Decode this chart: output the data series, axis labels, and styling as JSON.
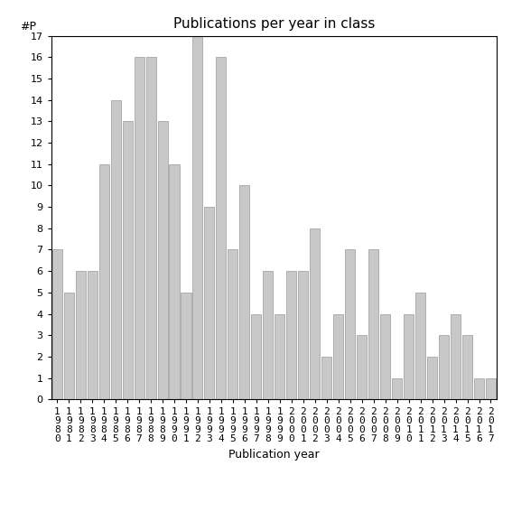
{
  "title": "Publications per year in class",
  "xlabel": "Publication year",
  "ylabel": "#P",
  "years": [
    1980,
    1981,
    1982,
    1983,
    1984,
    1985,
    1986,
    1987,
    1988,
    1989,
    1990,
    1991,
    1992,
    1993,
    1994,
    1995,
    1996,
    1997,
    1998,
    1999,
    2000,
    2001,
    2002,
    2003,
    2004,
    2005,
    2006,
    2007,
    2008,
    2009,
    2010,
    2011,
    2012,
    2013,
    2014,
    2015,
    2016,
    2017
  ],
  "values": [
    7,
    5,
    6,
    6,
    11,
    14,
    13,
    16,
    16,
    13,
    11,
    5,
    17,
    9,
    16,
    7,
    10,
    4,
    6,
    4,
    6,
    6,
    8,
    2,
    4,
    7,
    3,
    7,
    4,
    1,
    4,
    5,
    2,
    3,
    4,
    3,
    1,
    1
  ],
  "bar_color": "#c8c8c8",
  "bar_edgecolor": "#999999",
  "ylim": [
    0,
    17
  ],
  "yticks": [
    0,
    1,
    2,
    3,
    4,
    5,
    6,
    7,
    8,
    9,
    10,
    11,
    12,
    13,
    14,
    15,
    16,
    17
  ],
  "background_color": "#ffffff",
  "title_fontsize": 11,
  "axis_label_fontsize": 9,
  "tick_fontsize": 8
}
